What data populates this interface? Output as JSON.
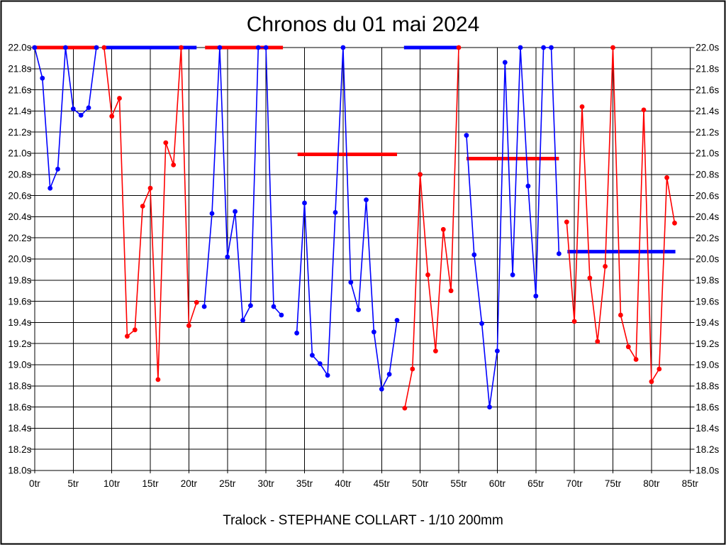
{
  "chart_data": {
    "type": "line",
    "title": "Chronos du 01 mai 2024",
    "footer": "Tralock - STEPHANE COLLART - 1/10 200mm",
    "x_axis": {
      "unit": "tr",
      "min": 0,
      "max": 85,
      "tick_step": 5
    },
    "y_axis": {
      "unit": "s",
      "min": 18.0,
      "max": 22.0,
      "tick_step": 0.2,
      "clip_max": 22.0
    },
    "grid": true,
    "legend": "none",
    "series": [
      {
        "name": "blue",
        "color": "#0000ff",
        "marker": "dot",
        "segments": [
          [
            [
              0,
              22.0
            ],
            [
              1,
              21.71
            ],
            [
              2,
              20.67
            ],
            [
              3,
              20.85
            ],
            [
              4,
              22.0
            ],
            [
              5,
              21.42
            ],
            [
              6,
              21.36
            ],
            [
              7,
              21.43
            ],
            [
              8,
              22.0
            ]
          ],
          [
            [
              22,
              19.55
            ],
            [
              23,
              20.43
            ],
            [
              24,
              22.0
            ],
            [
              25,
              20.02
            ],
            [
              26,
              20.45
            ],
            [
              27,
              19.42
            ],
            [
              28,
              19.56
            ],
            [
              29,
              22.0
            ],
            [
              30,
              22.0
            ],
            [
              31,
              19.55
            ],
            [
              32,
              19.47
            ]
          ],
          [
            [
              34,
              19.3
            ],
            [
              35,
              20.53
            ],
            [
              36,
              19.09
            ],
            [
              37,
              19.01
            ],
            [
              38,
              18.9
            ],
            [
              39,
              20.44
            ],
            [
              40,
              22.0
            ],
            [
              41,
              19.78
            ],
            [
              42,
              19.52
            ],
            [
              43,
              20.56
            ],
            [
              44,
              19.31
            ],
            [
              45,
              18.77
            ],
            [
              46,
              18.91
            ],
            [
              47,
              19.42
            ]
          ],
          [
            [
              56,
              21.17
            ],
            [
              57,
              20.04
            ],
            [
              58,
              19.39
            ],
            [
              59,
              18.6
            ],
            [
              60,
              19.13
            ],
            [
              61,
              21.86
            ],
            [
              62,
              19.85
            ],
            [
              63,
              22.0
            ],
            [
              64,
              20.69
            ],
            [
              65,
              19.65
            ],
            [
              66,
              22.0
            ],
            [
              67,
              22.0
            ],
            [
              68,
              20.05
            ]
          ]
        ]
      },
      {
        "name": "red",
        "color": "#ff0000",
        "marker": "dot",
        "segments": [
          [
            [
              9,
              22.0
            ],
            [
              10,
              21.35
            ],
            [
              11,
              21.52
            ],
            [
              12,
              19.27
            ],
            [
              13,
              19.33
            ],
            [
              14,
              20.5
            ],
            [
              15,
              20.67
            ],
            [
              16,
              18.86
            ],
            [
              17,
              21.1
            ],
            [
              18,
              20.89
            ],
            [
              19,
              22.0
            ],
            [
              20,
              19.37
            ],
            [
              21,
              19.59
            ]
          ],
          [
            [
              48,
              18.59
            ],
            [
              49,
              18.96
            ],
            [
              50,
              20.8
            ],
            [
              51,
              19.85
            ],
            [
              52,
              19.13
            ],
            [
              53,
              20.28
            ],
            [
              54,
              19.7
            ],
            [
              55,
              22.0
            ]
          ],
          [
            [
              69,
              20.35
            ],
            [
              70,
              19.41
            ],
            [
              71,
              21.44
            ],
            [
              72,
              19.82
            ],
            [
              73,
              19.22
            ],
            [
              74,
              19.93
            ],
            [
              75,
              22.0
            ],
            [
              76,
              19.47
            ],
            [
              77,
              19.17
            ],
            [
              78,
              19.05
            ],
            [
              79,
              21.41
            ],
            [
              80,
              18.84
            ],
            [
              81,
              18.96
            ],
            [
              82,
              20.77
            ],
            [
              83,
              20.34
            ]
          ]
        ]
      }
    ],
    "reference_bars": [
      {
        "color": "#ff0000",
        "time": 22.0,
        "from_lap": -0.3,
        "to_lap": 8.3
      },
      {
        "color": "#0000ff",
        "time": 22.0,
        "from_lap": 9.1,
        "to_lap": 21.0
      },
      {
        "color": "#ff0000",
        "time": 22.0,
        "from_lap": 22.1,
        "to_lap": 32.2
      },
      {
        "color": "#ff0000",
        "time": 20.99,
        "from_lap": 34.1,
        "to_lap": 47.0
      },
      {
        "color": "#0000ff",
        "time": 22.0,
        "from_lap": 47.9,
        "to_lap": 55.0
      },
      {
        "color": "#ff0000",
        "time": 20.95,
        "from_lap": 56.0,
        "to_lap": 68.0
      },
      {
        "color": "#0000ff",
        "time": 20.07,
        "from_lap": 69.1,
        "to_lap": 83.1
      }
    ]
  }
}
